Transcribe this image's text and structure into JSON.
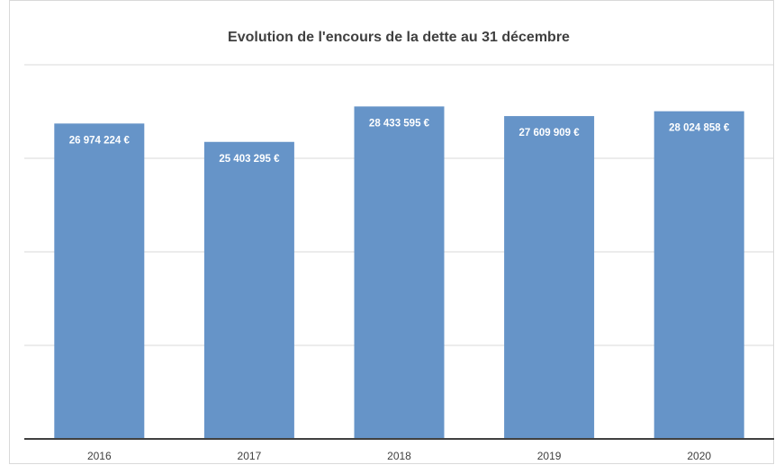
{
  "chart_data": {
    "type": "bar",
    "title": "Evolution de l'encours de la dette au 31 décembre",
    "categories": [
      "2016",
      "2017",
      "2018",
      "2019",
      "2020"
    ],
    "values": [
      26974224,
      25403295,
      28433595,
      27609909,
      28024858
    ],
    "value_labels": [
      "26 974 224 €",
      "25 403 295 €",
      "28 433 595 €",
      "27 609 909 €",
      "28 024 858 €"
    ],
    "color": "#6694c8",
    "ylim": [
      0,
      32000000
    ],
    "yticks": [
      0,
      8000000,
      16000000,
      24000000,
      32000000
    ],
    "grid": true
  }
}
